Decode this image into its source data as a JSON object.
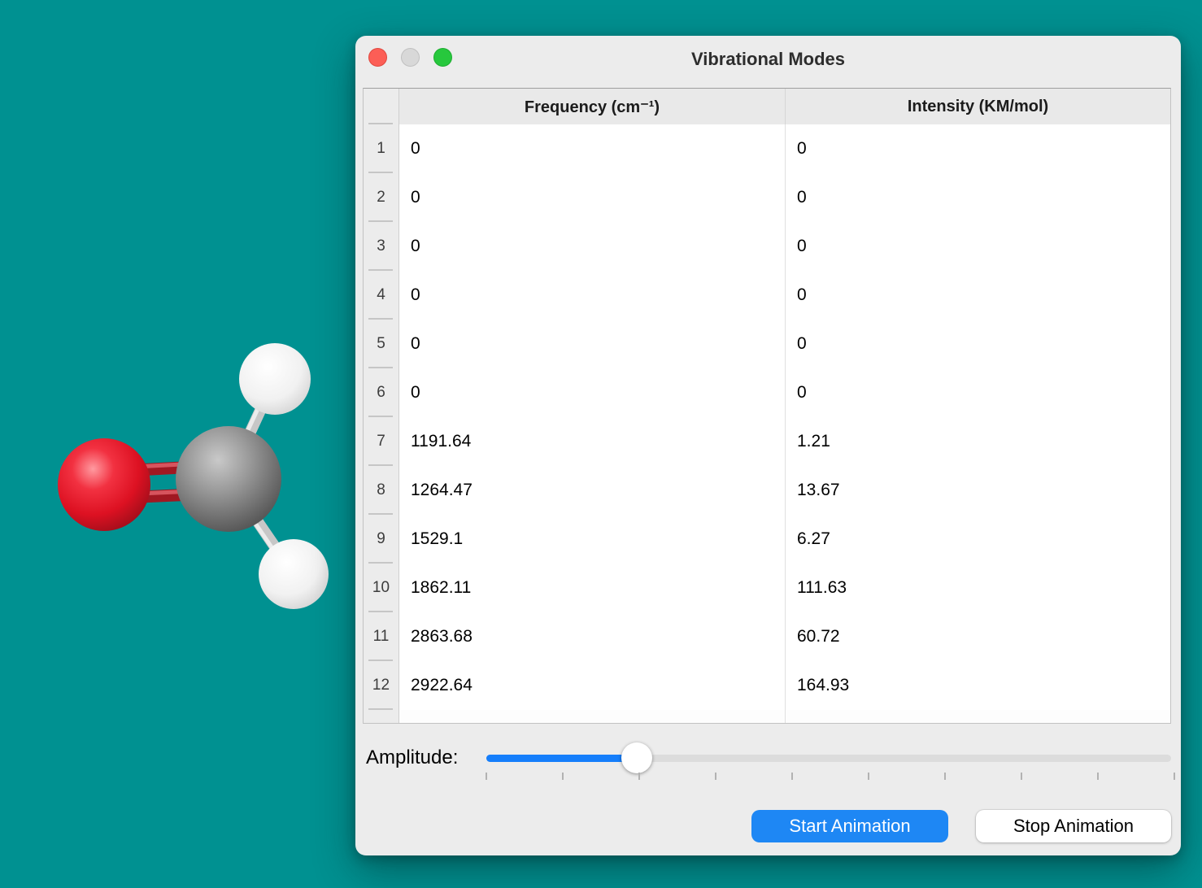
{
  "window": {
    "title": "Vibrational Modes",
    "controls": {
      "close": "close",
      "minimize": "minimize",
      "zoom": "zoom"
    }
  },
  "table": {
    "columns": {
      "frequency": "Frequency (cm⁻¹)",
      "intensity": "Intensity (KM/mol)"
    },
    "selected_row": 8,
    "rows": [
      {
        "n": "1",
        "frequency": "0",
        "intensity": "0"
      },
      {
        "n": "2",
        "frequency": "0",
        "intensity": "0"
      },
      {
        "n": "3",
        "frequency": "0",
        "intensity": "0"
      },
      {
        "n": "4",
        "frequency": "0",
        "intensity": "0"
      },
      {
        "n": "5",
        "frequency": "0",
        "intensity": "0"
      },
      {
        "n": "6",
        "frequency": "0",
        "intensity": "0"
      },
      {
        "n": "7",
        "frequency": "1191.64",
        "intensity": "1.21"
      },
      {
        "n": "8",
        "frequency": "1264.47",
        "intensity": "13.67"
      },
      {
        "n": "9",
        "frequency": "1529.1",
        "intensity": "6.27"
      },
      {
        "n": "10",
        "frequency": "1862.11",
        "intensity": "111.63"
      },
      {
        "n": "11",
        "frequency": "2863.68",
        "intensity": "60.72"
      },
      {
        "n": "12",
        "frequency": "2922.64",
        "intensity": "164.93"
      }
    ]
  },
  "amplitude": {
    "label": "Amplitude:",
    "value_percent": 22
  },
  "buttons": {
    "start": "Start Animation",
    "stop": "Stop Animation"
  },
  "colors": {
    "background_teal": "#009191",
    "window_gray": "#ececec",
    "selected_row_blue": "#0b46cb",
    "slider_blue": "#157efb",
    "start_button_blue": "#1e87f4",
    "traffic_red": "#fc5e56",
    "traffic_gray": "#d8d8d8",
    "traffic_green": "#27c83d",
    "oxygen_red": "#e11a2b",
    "carbon_gray": "#6f6f6f",
    "hydrogen_white": "#f3f3f3"
  },
  "molecule": {
    "name": "formaldehyde",
    "atoms": [
      {
        "element": "O"
      },
      {
        "element": "C"
      },
      {
        "element": "H"
      },
      {
        "element": "H"
      }
    ],
    "bonds": [
      {
        "atoms": "C=O",
        "order": 2
      },
      {
        "atoms": "C-H",
        "order": 1
      },
      {
        "atoms": "C-H",
        "order": 1
      }
    ]
  }
}
